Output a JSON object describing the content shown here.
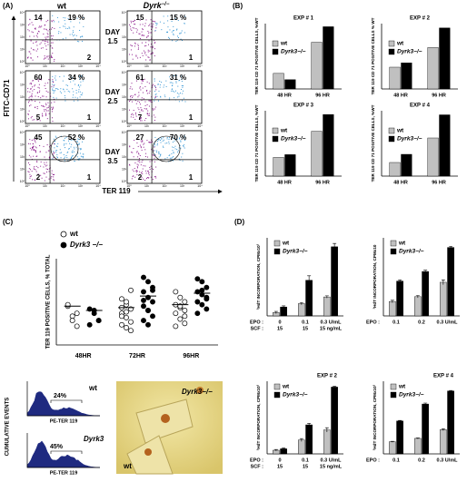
{
  "panel_a": {
    "label": "(A)",
    "wt_title": "wt",
    "ko_title": "Dyrk",
    "ko_sup": "−/−",
    "y_label": "FITC-CD71",
    "x_label": "TER 119",
    "axis_ticks": [
      "10⁰",
      "10¹",
      "10²",
      "10³",
      "10⁴"
    ],
    "rows": [
      {
        "day": "DAY",
        "day_value": "1.5",
        "wt": {
          "ul": "14",
          "ur": "19 %",
          "lr": "2"
        },
        "ko": {
          "ul": "15",
          "ur": "15 %",
          "lr": "1"
        }
      },
      {
        "day": "DAY",
        "day_value": "2.5",
        "wt": {
          "ul": "60",
          "ur": "34 %",
          "ll": "5",
          "lr": "1"
        },
        "ko": {
          "ul": "61",
          "ur": "31 %",
          "ll": "7",
          "lr": "1"
        }
      },
      {
        "day": "DAY",
        "day_value": "3.5",
        "wt": {
          "ul": "45",
          "ur": "52 %",
          "ll": "2",
          "lr": "1"
        },
        "ko": {
          "ul": "27",
          "ur": "70 %",
          "ll": "2",
          "lr": "1"
        }
      }
    ]
  },
  "panel_b_label": "(B)",
  "panel_c_label": "(C)",
  "panel_d_label": "(D)",
  "chart_data": [
    {
      "type": "bar",
      "title": "EXP # 1",
      "y_label": "TER 119 CD 71 POSITIVE CELLS, %WT",
      "categories": [
        "48 HR",
        "96 HR"
      ],
      "ylim": [
        0,
        420
      ],
      "series": [
        {
          "name": "wt",
          "color": "#c0c0c0",
          "values": [
            100,
            300
          ]
        },
        {
          "name": "Dyrk3−/−",
          "color": "#000000",
          "values": [
            60,
            400
          ]
        }
      ]
    },
    {
      "type": "bar",
      "title": "EXP # 2",
      "y_label": "TER 119 CD 71 POSITIVE CELLS % WT",
      "categories": [
        "48 HR",
        "96 HR"
      ],
      "ylim": [
        0,
        300
      ],
      "series": [
        {
          "name": "wt",
          "color": "#c0c0c0",
          "values": [
            100,
            190
          ]
        },
        {
          "name": "Dyrk3−/−",
          "color": "#000000",
          "values": [
            120,
            280
          ]
        }
      ]
    },
    {
      "type": "bar",
      "title": "EXP # 3",
      "y_label": "TER 119 CD 71 POSITIVE CELLS, %WT",
      "categories": [
        "48 HR",
        "96 HR"
      ],
      "ylim": [
        0,
        350
      ],
      "series": [
        {
          "name": "wt",
          "color": "#c0c0c0",
          "values": [
            100,
            240
          ]
        },
        {
          "name": "Dyrk3−/−",
          "color": "#000000",
          "values": [
            115,
            330
          ]
        }
      ]
    },
    {
      "type": "bar",
      "title": "EXP # 4",
      "y_label": "TER 119 CD 71 POSITIVE CELLS, %WT",
      "categories": [
        "48 HR",
        "96 HR"
      ],
      "ylim": [
        0,
        480
      ],
      "series": [
        {
          "name": "wt",
          "color": "#c0c0c0",
          "values": [
            100,
            280
          ]
        },
        {
          "name": "Dyrk3−/−",
          "color": "#000000",
          "values": [
            160,
            450
          ]
        }
      ]
    },
    {
      "type": "strip",
      "y_label": "TER 119 POSITIVE CELLS, % TOTAL",
      "categories": [
        "48HR",
        "72HR",
        "96HR"
      ],
      "ylim": [
        0,
        60
      ],
      "series": [
        {
          "name": "wt",
          "color": "#ffffff",
          "values": [
            [
              27,
              20,
              22,
              28,
              17,
              13
            ],
            [
              32,
              28,
              25,
              22,
              19,
              16,
              14,
              12,
              10,
              26,
              30,
              38,
              20,
              23
            ],
            [
              37,
              33,
              30,
              28,
              26,
              24,
              22,
              18,
              15,
              13,
              27,
              20
            ]
          ],
          "means": [
            27,
            26,
            28
          ]
        },
        {
          "name": "Dyrk3 −/−",
          "color": "#000000",
          "values": [
            [
              25,
              22,
              17,
              14,
              24,
              17
            ],
            [
              47,
              44,
              40,
              37,
              33,
              30,
              27,
              24,
              20,
              17,
              14,
              38,
              31,
              24
            ],
            [
              46,
              44,
              40,
              37,
              35,
              32,
              30,
              28,
              25,
              22,
              38,
              33
            ]
          ],
          "means": [
            24,
            34,
            36
          ]
        }
      ]
    },
    {
      "type": "bar",
      "y_label": "³HdT INCORPORATION, CPMx10³",
      "categories_label": "EPO :",
      "categories": [
        "0",
        "0.1",
        "0.3 U/mL"
      ],
      "subcategories_label": "SCF :",
      "subcategories": [
        "15",
        "15",
        "15 ng/mL"
      ],
      "ylim": [
        0,
        70
      ],
      "series": [
        {
          "name": "wt",
          "color": "#c0c0c0",
          "values": [
            3,
            11,
            17
          ],
          "errors": [
            1,
            1,
            1
          ]
        },
        {
          "name": "Dyrk3−/−",
          "color": "#000000",
          "values": [
            8,
            32,
            62
          ],
          "errors": [
            1,
            4,
            3
          ]
        }
      ]
    },
    {
      "type": "bar",
      "y_label": "³HdT INCORPORATION, CPMx10",
      "categories_label": "EPO :",
      "categories": [
        "0.1",
        "0.2",
        "0.3 U/mL"
      ],
      "ylim": [
        0,
        65
      ],
      "series": [
        {
          "name": "wt",
          "color": "#c0c0c0",
          "values": [
            12,
            16,
            28
          ],
          "errors": [
            1,
            1,
            2
          ]
        },
        {
          "name": "Dyrk3−/−",
          "color": "#000000",
          "values": [
            29,
            37,
            57
          ],
          "errors": [
            1,
            1,
            1
          ]
        }
      ]
    },
    {
      "type": "bar",
      "title": "EXP # 2",
      "y_label": "³HdT INCORPORATION, CPMx10³",
      "categories_label": "EPO :",
      "categories": [
        "0",
        "0.1",
        "0.3 U/mL"
      ],
      "subcategories_label": "SCF :",
      "subcategories": [
        "15",
        "15",
        "15 ng/mL"
      ],
      "ylim": [
        0,
        100
      ],
      "series": [
        {
          "name": "wt",
          "color": "#c0c0c0",
          "values": [
            5,
            19,
            33
          ],
          "errors": [
            1,
            2,
            3
          ]
        },
        {
          "name": "Dyrk3−/−",
          "color": "#000000",
          "values": [
            7,
            40,
            92
          ],
          "errors": [
            1,
            2,
            1
          ]
        }
      ]
    },
    {
      "type": "bar",
      "title": "EXP # 4",
      "y_label": "³HdT INCORPORATION, CPMx10³",
      "categories_label": "EPO :",
      "categories": [
        "0.1",
        "0.2",
        "0.3 U/mL"
      ],
      "ylim": [
        0,
        150
      ],
      "series": [
        {
          "name": "wt",
          "color": "#c0c0c0",
          "values": [
            25,
            32,
            50
          ],
          "errors": [
            1,
            1,
            2
          ]
        },
        {
          "name": "Dyrk3−/−",
          "color": "#000000",
          "values": [
            68,
            103,
            130
          ],
          "errors": [
            1,
            2,
            1
          ]
        }
      ]
    }
  ],
  "histograms": {
    "y_label": "CUMULATIVE EVENTS",
    "plots": [
      {
        "name": "wt",
        "percent": "24%",
        "x_label": "PE-TER 119"
      },
      {
        "name": "Dyrk3",
        "percent": "45%",
        "x_label": "PE-TER 119"
      }
    ]
  },
  "micrograph": {
    "labels": [
      "Dyrk3−/−",
      "wt"
    ]
  }
}
